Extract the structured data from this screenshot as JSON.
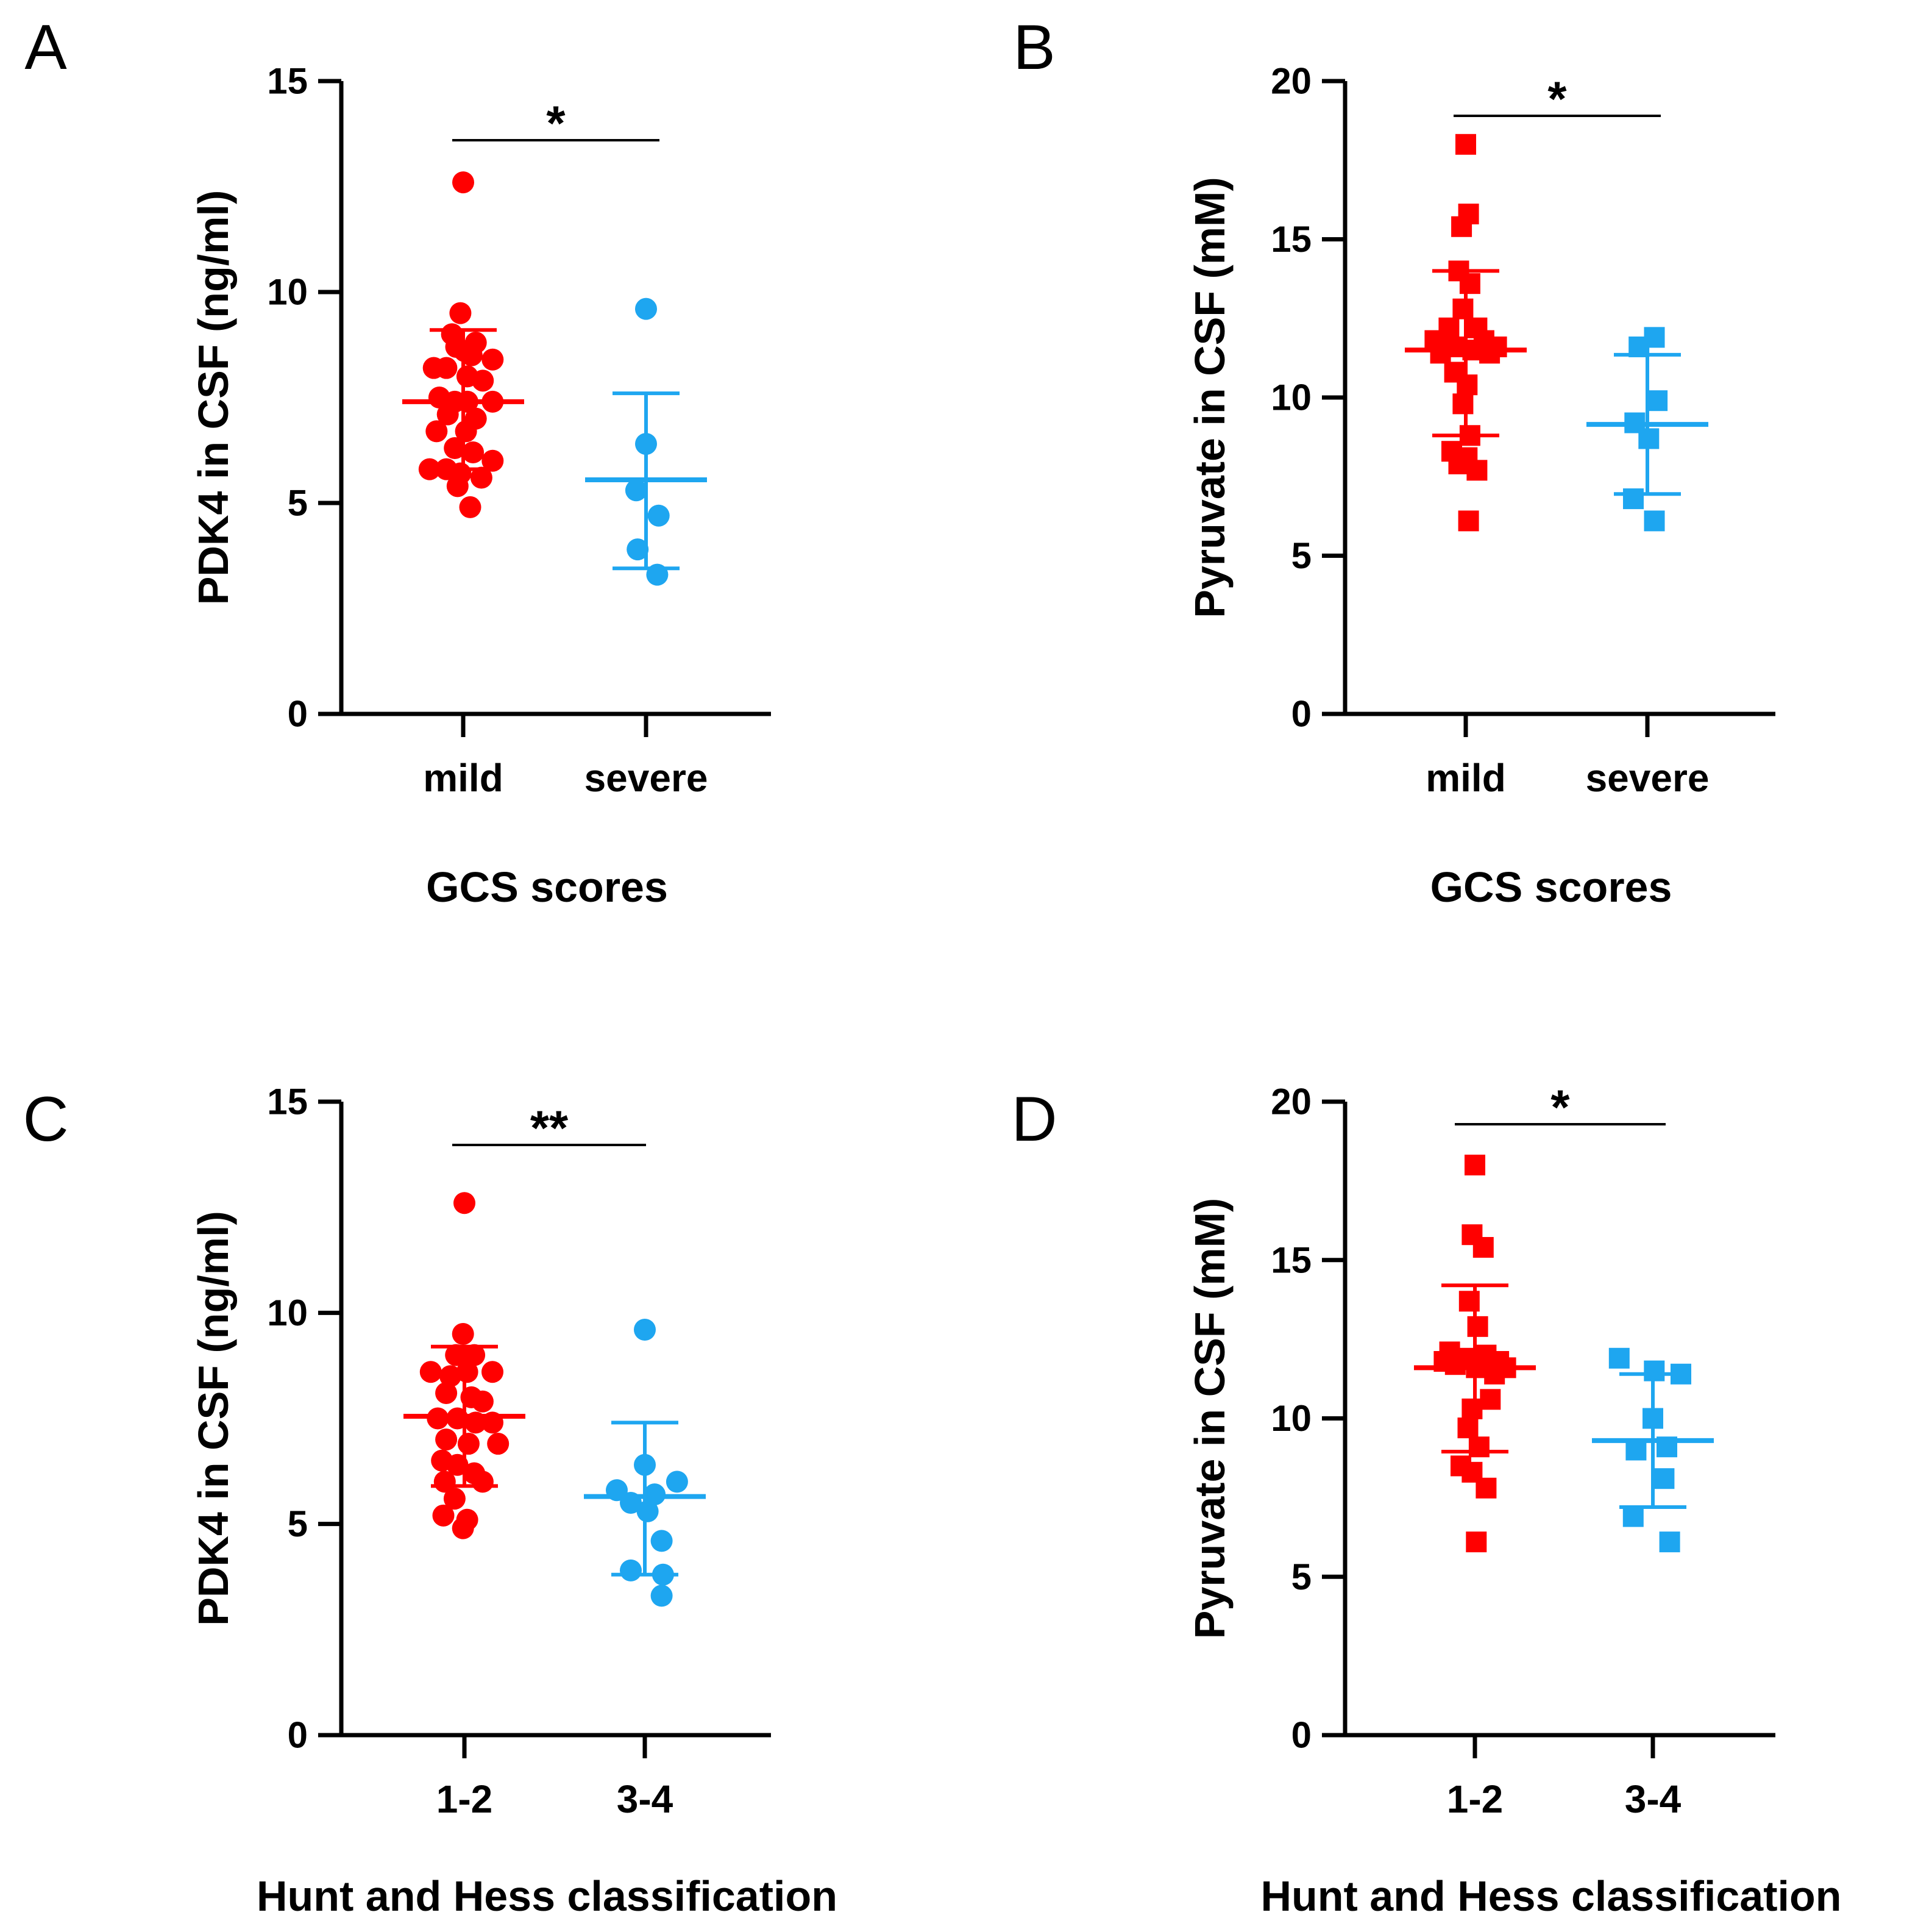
{
  "chart_data": [
    {
      "panel": "A",
      "type": "scatter",
      "ylabel": "PDK4 in CSF (ng/ml)",
      "xlabel": "GCS scores",
      "categories": [
        "mild",
        "severe"
      ],
      "ylim": [
        0,
        15
      ],
      "yticks": [
        0,
        5,
        10,
        15
      ],
      "marker": "circle",
      "significance": "*",
      "series": [
        {
          "name": "mild",
          "color": "#ff0000",
          "mean": 7.4,
          "sd_low": 5.8,
          "sd_high": 9.1,
          "points": [
            [
              0,
              12.6
            ],
            [
              -0.02,
              9.5
            ],
            [
              -0.08,
              9.0
            ],
            [
              0.09,
              8.8
            ],
            [
              -0.05,
              8.7
            ],
            [
              0.01,
              8.6
            ],
            [
              0.06,
              8.5
            ],
            [
              0.21,
              8.4
            ],
            [
              -0.21,
              8.2
            ],
            [
              -0.12,
              8.2
            ],
            [
              0.03,
              8.0
            ],
            [
              0.14,
              7.9
            ],
            [
              -0.17,
              7.5
            ],
            [
              -0.06,
              7.4
            ],
            [
              0.03,
              7.4
            ],
            [
              0.21,
              7.4
            ],
            [
              -0.11,
              7.1
            ],
            [
              0.09,
              7.0
            ],
            [
              -0.19,
              6.7
            ],
            [
              0.02,
              6.7
            ],
            [
              -0.06,
              6.3
            ],
            [
              0.07,
              6.2
            ],
            [
              0.21,
              6.0
            ],
            [
              -0.24,
              5.8
            ],
            [
              -0.12,
              5.8
            ],
            [
              -0.02,
              5.7
            ],
            [
              0.13,
              5.6
            ],
            [
              -0.04,
              5.4
            ],
            [
              0.05,
              4.9
            ]
          ]
        },
        {
          "name": "severe",
          "color": "#1ea6f0",
          "mean": 5.55,
          "sd_low": 3.45,
          "sd_high": 7.6,
          "points": [
            [
              0,
              9.6
            ],
            [
              0,
              6.4
            ],
            [
              -0.07,
              5.3
            ],
            [
              0.09,
              4.7
            ],
            [
              -0.06,
              3.9
            ],
            [
              0.08,
              3.3
            ]
          ]
        }
      ]
    },
    {
      "panel": "B",
      "type": "scatter",
      "ylabel": "Pyruvate in CSF (mM)",
      "xlabel": "GCS scores",
      "categories": [
        "mild",
        "severe"
      ],
      "ylim": [
        0,
        20
      ],
      "yticks": [
        0,
        5,
        10,
        15,
        20
      ],
      "marker": "square",
      "significance": "*",
      "series": [
        {
          "name": "mild",
          "color": "#ff0000",
          "mean": 11.5,
          "sd_low": 8.8,
          "sd_high": 14.0,
          "points": [
            [
              0,
              18.0
            ],
            [
              0.02,
              15.8
            ],
            [
              -0.03,
              15.4
            ],
            [
              -0.05,
              14.0
            ],
            [
              0.03,
              13.6
            ],
            [
              -0.02,
              12.8
            ],
            [
              -0.12,
              12.2
            ],
            [
              0.08,
              12.2
            ],
            [
              -0.22,
              11.8
            ],
            [
              -0.15,
              11.7
            ],
            [
              -0.07,
              11.6
            ],
            [
              0.05,
              11.5
            ],
            [
              0.13,
              11.8
            ],
            [
              0.22,
              11.6
            ],
            [
              -0.18,
              11.4
            ],
            [
              0.17,
              11.4
            ],
            [
              -0.08,
              10.8
            ],
            [
              0.01,
              10.4
            ],
            [
              -0.02,
              9.8
            ],
            [
              0.03,
              8.8
            ],
            [
              -0.1,
              8.3
            ],
            [
              0.01,
              8.1
            ],
            [
              -0.05,
              7.9
            ],
            [
              0.08,
              7.7
            ],
            [
              0.02,
              6.1
            ]
          ]
        },
        {
          "name": "severe",
          "color": "#1ea6f0",
          "mean": 9.15,
          "sd_low": 6.95,
          "sd_high": 11.35,
          "points": [
            [
              -0.06,
              11.6
            ],
            [
              0.05,
              11.9
            ],
            [
              0.07,
              9.9
            ],
            [
              -0.09,
              9.2
            ],
            [
              0.01,
              8.7
            ],
            [
              -0.1,
              6.8
            ],
            [
              0.05,
              6.1
            ]
          ]
        }
      ]
    },
    {
      "panel": "C",
      "type": "scatter",
      "ylabel": "PDK4 in CSF (ng/ml)",
      "xlabel": "Hunt and Hess classification",
      "categories": [
        "1-2",
        "3-4"
      ],
      "ylim": [
        0,
        15
      ],
      "yticks": [
        0,
        5,
        10,
        15
      ],
      "marker": "circle",
      "significance": "**",
      "series": [
        {
          "name": "1-2",
          "color": "#ff0000",
          "mean": 7.55,
          "sd_low": 5.9,
          "sd_high": 9.2,
          "points": [
            [
              0,
              12.6
            ],
            [
              -0.01,
              9.5
            ],
            [
              -0.06,
              9.0
            ],
            [
              0.07,
              9.0
            ],
            [
              -0.24,
              8.6
            ],
            [
              -0.1,
              8.5
            ],
            [
              0.02,
              8.6
            ],
            [
              0.2,
              8.6
            ],
            [
              -0.13,
              8.1
            ],
            [
              0.05,
              8.0
            ],
            [
              0.13,
              7.9
            ],
            [
              -0.19,
              7.5
            ],
            [
              -0.05,
              7.5
            ],
            [
              0.08,
              7.4
            ],
            [
              0.2,
              7.4
            ],
            [
              -0.13,
              7.0
            ],
            [
              0.03,
              6.9
            ],
            [
              0.24,
              6.9
            ],
            [
              -0.16,
              6.5
            ],
            [
              -0.05,
              6.4
            ],
            [
              0.07,
              6.2
            ],
            [
              -0.14,
              6.0
            ],
            [
              0.13,
              6.0
            ],
            [
              -0.07,
              5.6
            ],
            [
              -0.15,
              5.2
            ],
            [
              0.02,
              5.1
            ],
            [
              -0.01,
              4.9
            ]
          ]
        },
        {
          "name": "3-4",
          "color": "#1ea6f0",
          "mean": 5.65,
          "sd_low": 3.8,
          "sd_high": 7.4,
          "points": [
            [
              0,
              9.6
            ],
            [
              0,
              6.4
            ],
            [
              0.23,
              6.0
            ],
            [
              -0.2,
              5.8
            ],
            [
              0.07,
              5.7
            ],
            [
              -0.1,
              5.5
            ],
            [
              0.02,
              5.3
            ],
            [
              0.12,
              4.6
            ],
            [
              -0.1,
              3.9
            ],
            [
              0.13,
              3.8
            ],
            [
              0.12,
              3.3
            ]
          ]
        }
      ]
    },
    {
      "panel": "D",
      "type": "scatter",
      "ylabel": "Pyruvate in CSF (mM)",
      "xlabel": "Hunt and Hess classification",
      "categories": [
        "1-2",
        "3-4"
      ],
      "ylim": [
        0,
        20
      ],
      "yticks": [
        0,
        5,
        10,
        15,
        20
      ],
      "marker": "square",
      "significance": "*",
      "series": [
        {
          "name": "1-2",
          "color": "#ff0000",
          "mean": 11.6,
          "sd_low": 8.95,
          "sd_high": 14.2,
          "points": [
            [
              0,
              18.0
            ],
            [
              -0.02,
              15.8
            ],
            [
              0.06,
              15.4
            ],
            [
              -0.04,
              13.7
            ],
            [
              0.02,
              12.9
            ],
            [
              -0.18,
              12.1
            ],
            [
              -0.08,
              11.9
            ],
            [
              0.08,
              12.0
            ],
            [
              -0.22,
              11.8
            ],
            [
              -0.14,
              11.7
            ],
            [
              0.17,
              11.8
            ],
            [
              0.22,
              11.6
            ],
            [
              0.14,
              11.4
            ],
            [
              0.01,
              11.6
            ],
            [
              0.11,
              10.6
            ],
            [
              -0.02,
              10.3
            ],
            [
              -0.05,
              9.7
            ],
            [
              0.03,
              9.1
            ],
            [
              -0.1,
              8.5
            ],
            [
              -0.02,
              8.3
            ],
            [
              0.08,
              7.8
            ],
            [
              0.01,
              6.1
            ]
          ]
        },
        {
          "name": "3-4",
          "color": "#1ea6f0",
          "mean": 9.3,
          "sd_low": 7.2,
          "sd_high": 11.4,
          "points": [
            [
              -0.24,
              11.9
            ],
            [
              0.01,
              11.5
            ],
            [
              0.2,
              11.4
            ],
            [
              0.0,
              10.0
            ],
            [
              -0.12,
              9.0
            ],
            [
              0.1,
              9.1
            ],
            [
              0.08,
              8.1
            ],
            [
              -0.14,
              6.9
            ],
            [
              0.12,
              6.1
            ]
          ]
        }
      ]
    }
  ]
}
